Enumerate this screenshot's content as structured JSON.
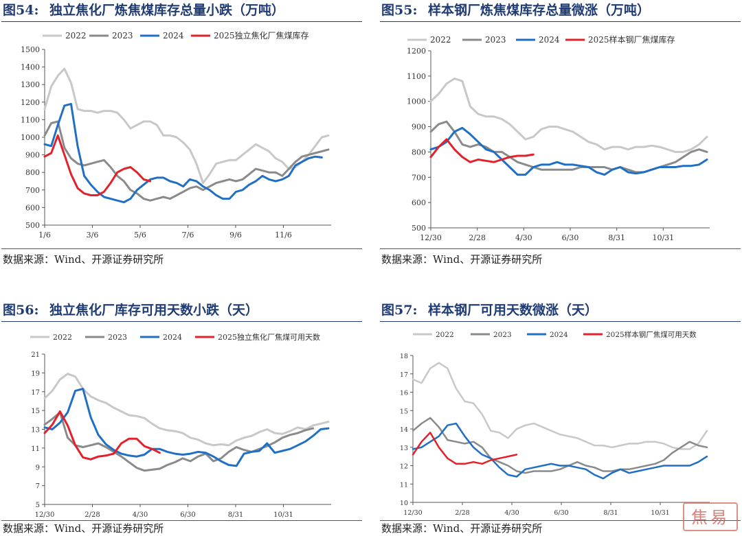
{
  "colors": {
    "s2022": "#c8c8c8",
    "s2023": "#8a8a8a",
    "s2024": "#1f6fc4",
    "s2025": "#e2222a"
  },
  "chart_data": [
    {
      "type": "line",
      "figure_no": "图54:",
      "title": "独立焦化厂炼焦煤库存总量小跌（万吨）",
      "source": "数据来源：Wind、开源证券研究所",
      "x_ticks": [
        "1/6",
        "3/6",
        "5/6",
        "7/6",
        "9/6",
        "11/6"
      ],
      "ylim": [
        500,
        1500
      ],
      "y_ticks": [
        "500",
        "600",
        "700",
        "800",
        "900",
        "1000",
        "1100",
        "1200",
        "1300",
        "1400",
        "1500"
      ],
      "grid": false,
      "legend_position": "top",
      "series": [
        {
          "name": "2022",
          "color": "#c8c8c8",
          "values": [
            1160,
            1290,
            1350,
            1390,
            1310,
            1160,
            1150,
            1150,
            1140,
            1150,
            1150,
            1140,
            1100,
            1050,
            1070,
            1090,
            1090,
            1070,
            1010,
            1010,
            1000,
            970,
            930,
            850,
            740,
            790,
            850,
            860,
            870,
            870,
            900,
            930,
            960,
            940,
            920,
            880,
            860,
            820,
            830,
            860,
            900,
            950,
            1000,
            1010
          ]
        },
        {
          "name": "2023",
          "color": "#8a8a8a",
          "values": [
            1010,
            1080,
            1090,
            940,
            880,
            850,
            840,
            850,
            860,
            870,
            830,
            780,
            750,
            700,
            680,
            650,
            640,
            650,
            660,
            650,
            670,
            690,
            710,
            720,
            700,
            720,
            740,
            750,
            760,
            750,
            760,
            790,
            820,
            810,
            800,
            800,
            780,
            820,
            860,
            890,
            900,
            910,
            920,
            930
          ]
        },
        {
          "name": "2024",
          "color": "#1f6fc4",
          "values": [
            960,
            950,
            1070,
            1180,
            1190,
            950,
            780,
            730,
            690,
            660,
            650,
            640,
            630,
            650,
            700,
            730,
            760,
            770,
            770,
            750,
            740,
            720,
            760,
            750,
            720,
            700,
            670,
            650,
            650,
            690,
            700,
            730,
            750,
            780,
            760,
            750,
            760,
            780,
            840,
            860,
            880,
            890,
            885
          ]
        },
        {
          "name": "2025独立焦化厂焦煤库存",
          "color": "#e2222a",
          "values": [
            890,
            910,
            1010,
            900,
            790,
            710,
            680,
            670,
            670,
            690,
            740,
            800,
            820,
            830,
            800,
            760,
            750
          ]
        }
      ]
    },
    {
      "type": "line",
      "figure_no": "图55:",
      "title": "样本钢厂炼焦煤库存总量微涨（万吨）",
      "source": "数据来源：Wind、开源证券研究所",
      "x_ticks": [
        "12/30",
        "2/28",
        "4/30",
        "6/30",
        "8/31",
        "10/31"
      ],
      "ylim": [
        500,
        1200
      ],
      "y_ticks": [
        "500",
        "600",
        "700",
        "800",
        "900",
        "1000",
        "1100",
        "1200"
      ],
      "grid": false,
      "legend_position": "top",
      "series": [
        {
          "name": "2022",
          "color": "#c8c8c8",
          "values": [
            1000,
            1030,
            1070,
            1090,
            1080,
            980,
            950,
            940,
            940,
            930,
            910,
            880,
            850,
            860,
            890,
            900,
            900,
            890,
            880,
            860,
            840,
            830,
            810,
            820,
            820,
            810,
            820,
            820,
            825,
            820,
            810,
            800,
            800,
            810,
            830,
            860
          ]
        },
        {
          "name": "2023",
          "color": "#8a8a8a",
          "values": [
            880,
            910,
            920,
            880,
            830,
            820,
            830,
            820,
            800,
            800,
            780,
            760,
            750,
            740,
            730,
            730,
            730,
            730,
            730,
            740,
            740,
            740,
            740,
            730,
            740,
            730,
            720,
            720,
            730,
            740,
            750,
            760,
            780,
            800,
            810,
            800
          ]
        },
        {
          "name": "2024",
          "color": "#1f6fc4",
          "values": [
            810,
            820,
            840,
            880,
            895,
            870,
            840,
            810,
            800,
            770,
            740,
            710,
            710,
            740,
            750,
            750,
            760,
            750,
            750,
            745,
            740,
            720,
            710,
            730,
            740,
            720,
            715,
            720,
            730,
            740,
            740,
            740,
            745,
            745,
            750,
            770
          ]
        },
        {
          "name": "2025样本钢厂焦煤库存",
          "color": "#e2222a",
          "values": [
            780,
            820,
            850,
            810,
            780,
            760,
            770,
            765,
            760,
            770,
            780,
            785,
            785,
            790
          ]
        }
      ]
    },
    {
      "type": "line",
      "figure_no": "图56:",
      "title": "独立焦化厂库存可用天数小跌（天）",
      "source": "数据来源：Wind、开源证券研究所",
      "x_ticks": [
        "12/30",
        "2/28",
        "4/30",
        "6/30",
        "8/31",
        "10/31"
      ],
      "ylim": [
        5,
        21
      ],
      "y_ticks": [
        "5",
        "7",
        "9",
        "11",
        "13",
        "15",
        "17",
        "19",
        "21"
      ],
      "grid": false,
      "legend_position": "top",
      "series": [
        {
          "name": "2022",
          "color": "#c8c8c8",
          "values": [
            16.3,
            17.1,
            18.3,
            18.9,
            18.6,
            17.3,
            16.5,
            16.1,
            15.8,
            15.3,
            14.9,
            14.5,
            14.4,
            14.2,
            13.6,
            13.1,
            12.9,
            12.8,
            12.6,
            12.1,
            11.9,
            11.5,
            11.3,
            11.4,
            11.3,
            11.8,
            12.1,
            12.3,
            12.7,
            13.0,
            12.6,
            12.5,
            12.8,
            13.2,
            13.0,
            13.4,
            13.6,
            13.8
          ]
        },
        {
          "name": "2023",
          "color": "#8a8a8a",
          "values": [
            13.5,
            14.1,
            14.8,
            12.1,
            11.3,
            11.1,
            11.3,
            11.5,
            11.1,
            10.6,
            10.1,
            9.5,
            8.9,
            8.6,
            8.7,
            8.8,
            9.2,
            9.5,
            9.9,
            9.6,
            10.1,
            10.4,
            9.6,
            9.9,
            10.6,
            11.1,
            10.8,
            10.6,
            10.9,
            11.2,
            11.6,
            12.1,
            12.4,
            12.6,
            12.9,
            13.1
          ]
        },
        {
          "name": "2024",
          "color": "#1f6fc4",
          "values": [
            13.2,
            13.0,
            13.7,
            14.8,
            17.1,
            17.3,
            14.3,
            12.4,
            11.4,
            10.8,
            10.4,
            10.2,
            10.1,
            10.3,
            10.9,
            10.9,
            10.6,
            10.4,
            10.3,
            10.4,
            10.6,
            10.5,
            10.1,
            9.6,
            9.2,
            9.1,
            10.4,
            10.6,
            10.7,
            11.5,
            10.5,
            10.7,
            10.9,
            11.3,
            11.7,
            12.3,
            13.0,
            13.1
          ]
        },
        {
          "name": "2025独立焦化厂焦煤可用天数",
          "color": "#e2222a",
          "values": [
            12.6,
            13.5,
            14.9,
            13.4,
            11.3,
            10.0,
            9.8,
            10.1,
            10.2,
            10.4,
            11.5,
            12.0,
            12.0,
            11.2,
            10.9,
            10.5
          ]
        }
      ]
    },
    {
      "type": "line",
      "figure_no": "图57:",
      "title": "样本钢厂可用天数微涨（天）",
      "source": "数据来源：Wind、开源证券研究所",
      "x_ticks": [
        "12/30",
        "2/28",
        "4/30",
        "6/30",
        "8/31",
        "10/31"
      ],
      "ylim": [
        10,
        18
      ],
      "y_ticks": [
        "10",
        "11",
        "12",
        "13",
        "14",
        "15",
        "16",
        "17",
        "18"
      ],
      "grid": false,
      "legend_position": "top",
      "series": [
        {
          "name": "2022",
          "color": "#c8c8c8",
          "values": [
            16.7,
            16.5,
            17.3,
            17.6,
            17.3,
            16.2,
            15.5,
            15.4,
            14.8,
            13.9,
            13.8,
            13.5,
            14.0,
            14.2,
            14.3,
            14.1,
            13.9,
            13.7,
            13.6,
            13.5,
            13.3,
            13.1,
            13.1,
            13.0,
            13.1,
            13.2,
            13.2,
            13.3,
            13.3,
            13.2,
            13.0,
            12.9,
            12.9,
            13.2,
            13.9
          ]
        },
        {
          "name": "2023",
          "color": "#8a8a8a",
          "values": [
            13.9,
            14.3,
            14.6,
            14.1,
            13.4,
            13.3,
            13.2,
            13.3,
            13.0,
            12.4,
            12.2,
            12.0,
            11.7,
            11.6,
            11.7,
            11.7,
            11.7,
            11.8,
            12.0,
            12.2,
            12.0,
            11.9,
            11.7,
            11.7,
            11.8,
            11.8,
            11.9,
            12.0,
            12.1,
            12.3,
            12.7,
            13.0,
            13.3,
            13.1,
            13.0
          ]
        },
        {
          "name": "2024",
          "color": "#1f6fc4",
          "values": [
            12.9,
            13.0,
            13.3,
            13.6,
            14.2,
            14.3,
            13.6,
            13.0,
            12.6,
            12.4,
            11.9,
            11.5,
            11.4,
            11.8,
            11.9,
            12.0,
            12.1,
            12.0,
            12.0,
            11.9,
            11.8,
            11.5,
            11.3,
            11.6,
            11.8,
            11.6,
            11.7,
            11.8,
            11.9,
            12.0,
            12.0,
            12.0,
            12.0,
            12.2,
            12.5
          ]
        },
        {
          "name": "2025样本钢厂焦煤可用天数",
          "color": "#e2222a",
          "values": [
            12.6,
            13.3,
            13.8,
            13.0,
            12.4,
            12.1,
            12.1,
            12.2,
            12.1,
            12.3,
            12.4,
            12.5,
            12.6
          ]
        }
      ]
    }
  ],
  "watermark": "焦易"
}
